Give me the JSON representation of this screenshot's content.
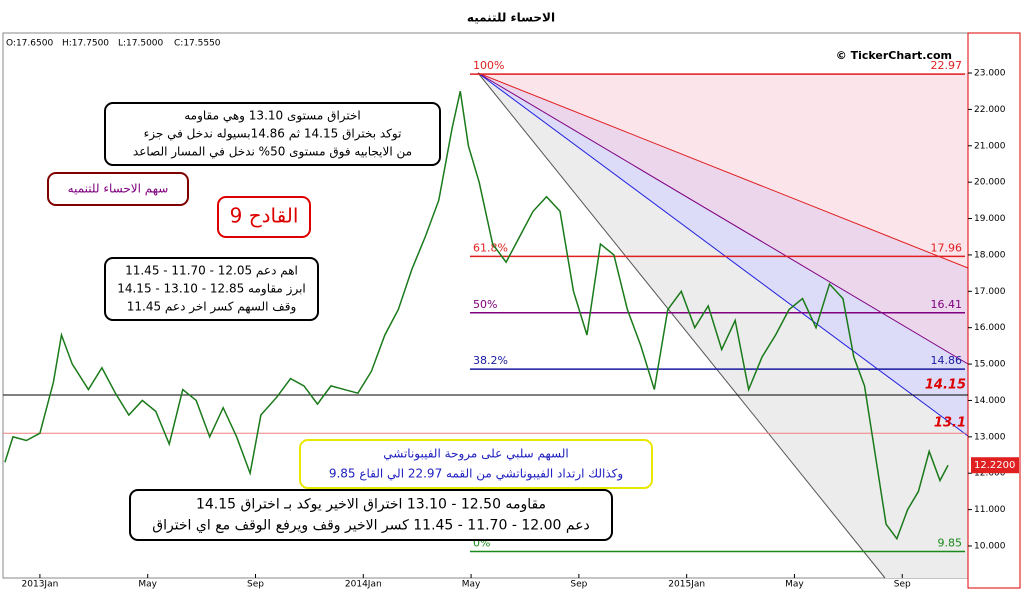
{
  "chart_data": {
    "type": "line",
    "title": "الاحساء للتنميه",
    "ohlc": [
      "O:17.6500",
      "H:17.7500",
      "L:17.5000",
      "C:17.5550"
    ],
    "copyright": "© TickerChart.com",
    "x": [
      -1.3,
      -1,
      -0.5,
      0,
      0.5,
      0.8,
      1.2,
      1.8,
      2.3,
      2.8,
      3.3,
      3.8,
      4.3,
      4.8,
      5.3,
      5.8,
      6.3,
      6.8,
      7.3,
      7.8,
      8.2,
      8.8,
      9.3,
      9.8,
      10.3,
      10.8,
      11.3,
      11.8,
      12.3,
      12.8,
      13.3,
      13.8,
      14.3,
      14.8,
      15.3,
      15.6,
      15.9,
      16.3,
      16.8,
      17.3,
      17.8,
      18.3,
      18.8,
      19.3,
      19.8,
      20.3,
      20.8,
      21.3,
      21.8,
      22.3,
      22.8,
      23.3,
      23.8,
      24.3,
      24.8,
      25.3,
      25.8,
      26.3,
      26.8,
      27.3,
      27.8,
      28.3,
      28.8,
      29.3,
      29.8,
      30.2,
      30.6,
      31.0,
      31.4,
      31.8,
      32.2,
      32.6,
      33.0,
      33.4,
      33.7
    ],
    "series": [
      {
        "color": "#1a7a1a",
        "values": [
          12.3,
          13.0,
          12.9,
          13.1,
          14.5,
          15.8,
          15.0,
          14.3,
          14.9,
          14.2,
          13.6,
          14.0,
          13.7,
          12.8,
          14.3,
          14.0,
          13.0,
          13.8,
          13.0,
          12.0,
          13.6,
          14.1,
          14.6,
          14.4,
          13.9,
          14.4,
          14.3,
          14.2,
          14.8,
          15.8,
          16.5,
          17.6,
          18.5,
          19.5,
          21.5,
          22.5,
          21.0,
          20.0,
          18.3,
          17.8,
          18.5,
          19.2,
          19.6,
          19.2,
          17.0,
          15.8,
          18.3,
          18.0,
          16.5,
          15.5,
          14.3,
          16.5,
          17.0,
          16.0,
          16.6,
          15.4,
          16.2,
          14.3,
          15.2,
          15.8,
          16.5,
          16.8,
          16.0,
          17.2,
          16.8,
          15.2,
          14.4,
          12.5,
          10.6,
          10.2,
          11.0,
          11.5,
          12.6,
          11.8,
          12.22
        ]
      }
    ],
    "xlim": [
      -1.37,
      34.44
    ],
    "xticks": [
      {
        "value": 0,
        "label": "2013Jan"
      },
      {
        "value": 4,
        "label": "May"
      },
      {
        "value": 8,
        "label": "Sep"
      },
      {
        "value": 12,
        "label": "2014Jan"
      },
      {
        "value": 16,
        "label": "May"
      },
      {
        "value": 20,
        "label": "Sep"
      },
      {
        "value": 24,
        "label": "2015Jan"
      },
      {
        "value": 28,
        "label": "May"
      },
      {
        "value": 32,
        "label": "Sep"
      }
    ],
    "ylim": [
      9.12,
      24.1
    ],
    "yticks": [
      {
        "value": 10,
        "label": "10.000"
      },
      {
        "value": 11,
        "label": "11.000"
      },
      {
        "value": 12,
        "label": "12.000"
      },
      {
        "value": 13,
        "label": "13.000"
      },
      {
        "value": 14,
        "label": "14.000"
      },
      {
        "value": 15,
        "label": "15.000"
      },
      {
        "value": 16,
        "label": "16.000"
      },
      {
        "value": 17,
        "label": "17.000"
      },
      {
        "value": 18,
        "label": "18.000"
      },
      {
        "value": 19,
        "label": "19.000"
      },
      {
        "value": 20,
        "label": "20.000"
      },
      {
        "value": 21,
        "label": "21.000"
      },
      {
        "value": 22,
        "label": "22.000"
      },
      {
        "value": 23,
        "label": "23.000"
      }
    ],
    "fib_levels": [
      {
        "label": "100%",
        "value": 22.97,
        "color": "#e02020"
      },
      {
        "label": "61.8%",
        "value": 17.96,
        "color": "#e02020"
      },
      {
        "label": "50%",
        "value": 16.41,
        "color": "#800080"
      },
      {
        "label": "38.2%",
        "value": 14.86,
        "color": "#1a1aa0"
      },
      {
        "label": "0%",
        "value": 9.85,
        "color": "#1a8a1a"
      }
    ],
    "levels": [
      {
        "value": 14.15,
        "color": "#000000"
      },
      {
        "value": 13.1,
        "color": "#f08080"
      }
    ],
    "last_price": {
      "value": 12.22,
      "label": "12.2200"
    },
    "annotations": [
      [
        "اختراق  مستوى 13.10 وهي  مقاومه",
        "توكد  بختراق 14.15 ثم 14.86بسيوله ندخل في جزء",
        "من الايجابيه فوق مستوى 50% ندخل في المسار الصاعد"
      ],
      [
        "سهم الاحساء للتنميه"
      ],
      [
        "القادح 9"
      ],
      [
        "اهم دعم 12.05 - 11.70 - 11.45",
        "ابرز مقاومه 12.85 - 13.10 - 14.15",
        "وقف السهم كسر اخر دعم 11.45"
      ],
      [
        "السهم سلبي على مروحة الفيبوناتشي",
        "وكذالك ارتداد الفيبوناتشي  من القمه 22.97 الي القاع 9.85"
      ],
      [
        "مقاومه 12.50 - 13.10 اختراق الاخير يوكد بـ اختراق 14.15",
        "دعم 12.00 - 11.70 - 11.45  كسر الاخير وقف ويرفع الوقف مع اي اختراق"
      ]
    ]
  }
}
